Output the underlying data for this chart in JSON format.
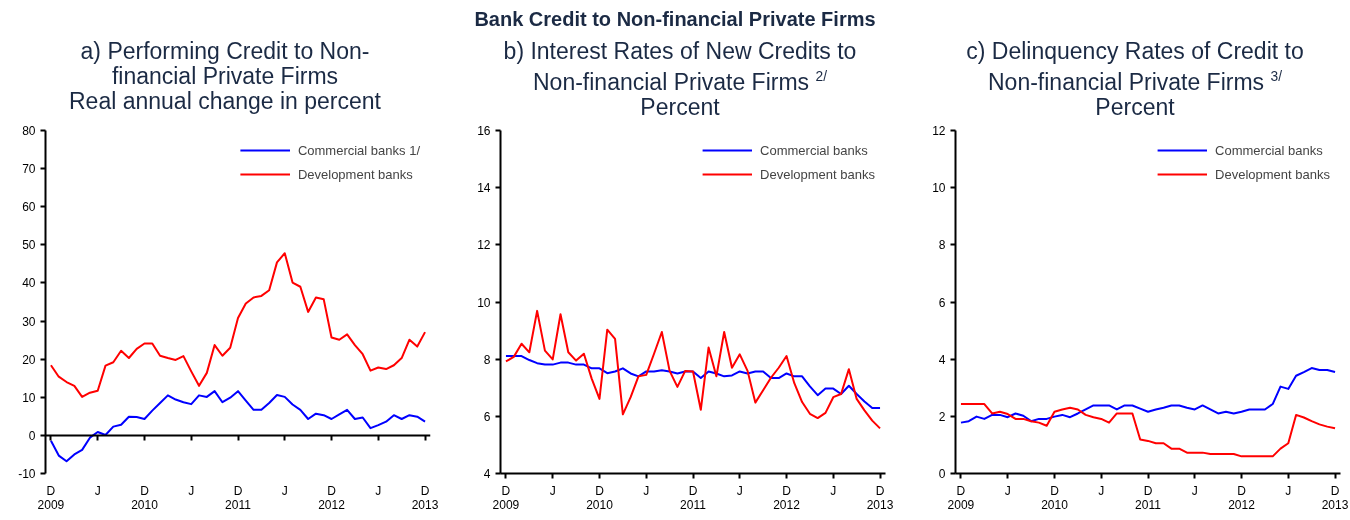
{
  "chart_data": [
    {
      "type": "line",
      "title": "Bank Credit to Non-financial Private Firms\na) Performing Credit to Non-\nfinancial Private Firms\nReal annual change in percent",
      "legend": "top right",
      "marker": "none",
      "line_style": "solid",
      "categories": [
        "D\n2009",
        null,
        null,
        null,
        null,
        null,
        "J",
        null,
        null,
        null,
        null,
        null,
        "D\n2010",
        null,
        null,
        null,
        null,
        null,
        "J",
        null,
        null,
        null,
        null,
        null,
        "D\n2011",
        null,
        null,
        null,
        null,
        null,
        "J",
        null,
        null,
        null,
        null,
        null,
        "D\n2012",
        null,
        null,
        null,
        null,
        null,
        "J",
        null,
        null,
        null,
        null,
        null,
        "D\n2013"
      ],
      "ylim": [
        -10,
        80
      ],
      "yticks": [
        -10,
        0,
        10,
        20,
        30,
        40,
        50,
        60,
        70,
        80
      ],
      "series": [
        {
          "name": "Commercial banks 1/",
          "color": "#0000ff",
          "values": [
            -1.4,
            -5.3,
            -6.8,
            -5.0,
            -3.8,
            -0.6,
            0.9,
            0.1,
            2.3,
            2.8,
            4.9,
            4.8,
            4.3,
            6.5,
            8.5,
            10.5,
            9.4,
            8.7,
            8.2,
            10.5,
            10.1,
            11.6,
            8.7,
            9.9,
            11.6,
            9.1,
            6.7,
            6.7,
            8.5,
            10.6,
            10.1,
            8.1,
            6.7,
            4.3,
            5.7,
            5.3,
            4.3,
            5.5,
            6.7,
            4.3,
            4.7,
            1.9,
            2.7,
            3.6,
            5.3,
            4.3,
            5.3,
            4.9,
            3.6
          ]
        },
        {
          "name": "Development banks",
          "color": "#ff0000",
          "values": [
            18.4,
            15.4,
            14.0,
            13.0,
            10.1,
            11.2,
            11.7,
            18.3,
            19.2,
            22.2,
            20.3,
            22.7,
            24.1,
            24.1,
            20.9,
            20.3,
            19.8,
            20.8,
            16.8,
            13.0,
            16.4,
            23.7,
            20.9,
            23.0,
            30.8,
            34.6,
            36.2,
            36.6,
            38.1,
            45.4,
            47.8,
            40.1,
            39.0,
            32.4,
            36.2,
            35.7,
            25.7,
            25.1,
            26.5,
            23.7,
            21.3,
            17.0,
            17.8,
            17.4,
            18.4,
            20.3,
            25.1,
            23.3,
            27.1
          ]
        }
      ]
    },
    {
      "type": "line",
      "title": "b) Interest Rates of New Credits to\nNon-financial Private Firms $^{2/}$\nPercent",
      "legend": "top right",
      "marker": "none",
      "line_style": "solid",
      "categories": [
        "D\n2009",
        null,
        null,
        null,
        null,
        null,
        "J",
        null,
        null,
        null,
        null,
        null,
        "D\n2010",
        null,
        null,
        null,
        null,
        null,
        "J",
        null,
        null,
        null,
        null,
        null,
        "D\n2011",
        null,
        null,
        null,
        null,
        null,
        "J",
        null,
        null,
        null,
        null,
        null,
        "D\n2012",
        null,
        null,
        null,
        null,
        null,
        "J",
        null,
        null,
        null,
        null,
        null,
        "D\n2013"
      ],
      "ylim": [
        4,
        16
      ],
      "yticks": [
        4,
        6,
        8,
        10,
        12,
        14,
        16
      ],
      "series": [
        {
          "name": "Commercial banks",
          "color": "#0000ff",
          "values": [
            8.11,
            8.11,
            8.11,
            7.97,
            7.86,
            7.81,
            7.81,
            7.88,
            7.88,
            7.81,
            7.81,
            7.68,
            7.68,
            7.51,
            7.57,
            7.68,
            7.5,
            7.4,
            7.57,
            7.57,
            7.61,
            7.57,
            7.5,
            7.57,
            7.57,
            7.34,
            7.57,
            7.5,
            7.4,
            7.43,
            7.57,
            7.5,
            7.57,
            7.57,
            7.34,
            7.34,
            7.5,
            7.4,
            7.4,
            7.05,
            6.74,
            6.97,
            6.97,
            6.78,
            7.07,
            6.78,
            6.52,
            6.29,
            6.29
          ]
        },
        {
          "name": "Development banks",
          "color": "#ff0000",
          "values": [
            7.92,
            8.08,
            8.54,
            8.24,
            9.69,
            8.3,
            7.99,
            9.57,
            8.24,
            7.95,
            8.19,
            7.32,
            6.61,
            9.03,
            8.71,
            6.07,
            6.67,
            7.4,
            7.45,
            8.19,
            8.95,
            7.59,
            7.03,
            7.59,
            7.57,
            6.23,
            8.41,
            7.4,
            8.95,
            7.7,
            8.17,
            7.59,
            6.48,
            6.91,
            7.35,
            7.7,
            8.11,
            7.16,
            6.5,
            6.09,
            5.94,
            6.12,
            6.67,
            6.78,
            7.65,
            6.61,
            6.21,
            5.85,
            5.58
          ]
        }
      ]
    },
    {
      "type": "line",
      "title": "c) Delinquency Rates of Credit to\nNon-financial Private Firms $^{3/}$\nPercent",
      "legend": "top right",
      "marker": "none",
      "line_style": "solid",
      "categories": [
        "D\n2009",
        null,
        null,
        null,
        null,
        null,
        "J",
        null,
        null,
        null,
        null,
        null,
        "D\n2010",
        null,
        null,
        null,
        null,
        null,
        "J",
        null,
        null,
        null,
        null,
        null,
        "D\n2011",
        null,
        null,
        null,
        null,
        null,
        "J",
        null,
        null,
        null,
        null,
        null,
        "D\n2012",
        null,
        null,
        null,
        null,
        null,
        "J",
        null,
        null,
        null,
        null,
        null,
        "D\n2013"
      ],
      "ylim": [
        0,
        12
      ],
      "yticks": [
        0,
        2,
        4,
        6,
        8,
        10,
        12
      ],
      "series": [
        {
          "name": "Commercial banks",
          "color": "#0000ff",
          "values": [
            1.78,
            1.83,
            1.99,
            1.91,
            2.05,
            2.05,
            1.97,
            2.1,
            2.02,
            1.83,
            1.91,
            1.91,
            1.99,
            2.05,
            1.97,
            2.1,
            2.24,
            2.38,
            2.38,
            2.38,
            2.24,
            2.38,
            2.38,
            2.27,
            2.16,
            2.24,
            2.3,
            2.38,
            2.38,
            2.3,
            2.24,
            2.38,
            2.24,
            2.1,
            2.16,
            2.1,
            2.16,
            2.24,
            2.24,
            2.24,
            2.43,
            3.04,
            2.96,
            3.42,
            3.55,
            3.69,
            3.62,
            3.62,
            3.55
          ]
        },
        {
          "name": "Development banks",
          "color": "#ff0000",
          "values": [
            2.43,
            2.43,
            2.43,
            2.43,
            2.1,
            2.16,
            2.08,
            1.91,
            1.91,
            1.83,
            1.78,
            1.67,
            2.16,
            2.24,
            2.3,
            2.24,
            2.05,
            1.97,
            1.91,
            1.78,
            2.1,
            2.1,
            2.1,
            1.19,
            1.14,
            1.06,
            1.06,
            0.87,
            0.87,
            0.73,
            0.73,
            0.73,
            0.68,
            0.68,
            0.68,
            0.68,
            0.6,
            0.6,
            0.6,
            0.6,
            0.6,
            0.87,
            1.06,
            2.05,
            1.96,
            1.83,
            1.72,
            1.64,
            1.58
          ]
        }
      ]
    }
  ]
}
